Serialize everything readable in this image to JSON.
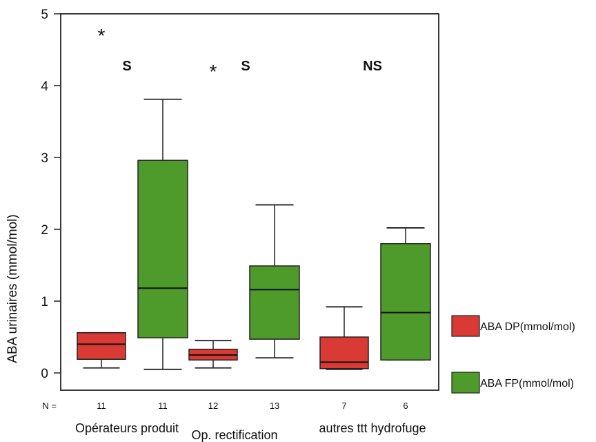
{
  "chart_data": {
    "type": "boxplot",
    "ylabel": "ABA urinaires (mmol/mol)",
    "ylim": [
      0,
      5
    ],
    "yticks": [
      0,
      1,
      2,
      3,
      4,
      5
    ],
    "n_prefix": "N =",
    "groups": [
      {
        "label": "Opérateurs produit",
        "label_row": 1,
        "significance": "S"
      },
      {
        "label": "Op. rectification",
        "label_row": 2,
        "significance": "S"
      },
      {
        "label": "autres ttt hydrofuge",
        "label_row": 1,
        "significance": "NS"
      }
    ],
    "series": [
      {
        "name": "ABA DP(mmol/mol)",
        "color": "#d93a34",
        "boxes": [
          {
            "group": 0,
            "n": "11",
            "whisker_low": 0.07,
            "q1": 0.19,
            "median": 0.4,
            "q3": 0.56,
            "whisker_high": 0.56,
            "outliers": [
              4.72
            ]
          },
          {
            "group": 1,
            "n": "12",
            "whisker_low": 0.07,
            "q1": 0.18,
            "median": 0.25,
            "q3": 0.33,
            "whisker_high": 0.45,
            "outliers": [
              4.22
            ]
          },
          {
            "group": 2,
            "n": "7",
            "whisker_low": 0.05,
            "q1": 0.06,
            "median": 0.15,
            "q3": 0.5,
            "whisker_high": 0.92,
            "outliers": []
          }
        ]
      },
      {
        "name": "ABA FP(mmol/mol)",
        "color": "#4e9a2a",
        "boxes": [
          {
            "group": 0,
            "n": "11",
            "whisker_low": 0.05,
            "q1": 0.49,
            "median": 1.18,
            "q3": 2.96,
            "whisker_high": 3.81,
            "outliers": []
          },
          {
            "group": 1,
            "n": "13",
            "whisker_low": 0.21,
            "q1": 0.47,
            "median": 1.16,
            "q3": 1.49,
            "whisker_high": 2.34,
            "outliers": []
          },
          {
            "group": 2,
            "n": "6",
            "whisker_low": 0.18,
            "q1": 0.18,
            "median": 0.84,
            "q3": 1.8,
            "whisker_high": 2.02,
            "outliers": []
          }
        ]
      }
    ]
  }
}
